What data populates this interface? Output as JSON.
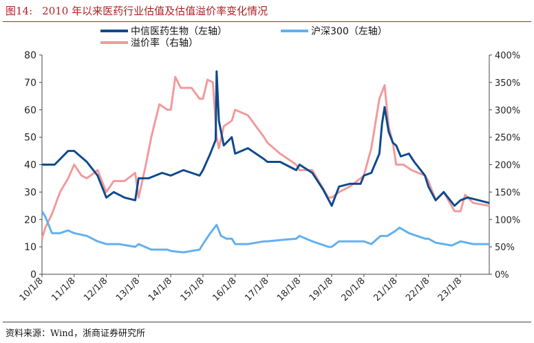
{
  "figure": {
    "label": "图14:",
    "title": "2010 年以来医药行业估值及估值溢价率变化情况",
    "source": "资料来源：Wind，浙商证券研究所"
  },
  "colors": {
    "pharma": "#0d4a8c",
    "hs300": "#62b0f0",
    "premium": "#f29a9c",
    "title": "#b11f24"
  },
  "chart_data": {
    "type": "line",
    "legend_position": "top",
    "grid": false,
    "x_ticks": [
      "10/1/8",
      "11/1/8",
      "12/1/8",
      "13/1/8",
      "14/1/8",
      "15/1/8",
      "16/1/8",
      "17/1/8",
      "18/1/8",
      "19/1/8",
      "20/1/8",
      "21/1/8",
      "22/1/8",
      "23/1/8"
    ],
    "xlim": [
      "2010-01-08",
      "2023-11-30"
    ],
    "y_left": {
      "ylim": [
        0,
        80
      ],
      "ticks": [
        "0",
        "10",
        "20",
        "30",
        "40",
        "50",
        "60",
        "70",
        "80"
      ]
    },
    "y_right": {
      "ylim": [
        0,
        4
      ],
      "ticks": [
        "0%",
        "50%",
        "100%",
        "150%",
        "200%",
        "250%",
        "300%",
        "350%",
        "400%"
      ]
    },
    "series": [
      {
        "name": "中信医药生物（左轴）",
        "axis": "left",
        "key": "pharma",
        "points": [
          [
            "2010-01-08",
            40
          ],
          [
            "2010-06-01",
            40
          ],
          [
            "2010-11-01",
            45
          ],
          [
            "2011-01-08",
            45
          ],
          [
            "2011-06-01",
            41
          ],
          [
            "2011-10-01",
            36
          ],
          [
            "2012-01-08",
            28
          ],
          [
            "2012-04-01",
            30
          ],
          [
            "2012-08-01",
            28
          ],
          [
            "2012-12-01",
            27
          ],
          [
            "2013-01-08",
            35
          ],
          [
            "2013-05-01",
            35
          ],
          [
            "2013-10-01",
            37
          ],
          [
            "2014-01-08",
            36
          ],
          [
            "2014-06-01",
            38
          ],
          [
            "2014-12-01",
            36
          ],
          [
            "2015-01-08",
            38
          ],
          [
            "2015-04-01",
            44
          ],
          [
            "2015-06-01",
            49
          ],
          [
            "2015-06-12",
            74
          ],
          [
            "2015-07-08",
            56
          ],
          [
            "2015-09-01",
            47
          ],
          [
            "2015-12-01",
            50
          ],
          [
            "2016-01-08",
            44
          ],
          [
            "2016-06-01",
            46
          ],
          [
            "2016-12-01",
            42
          ],
          [
            "2017-01-08",
            41
          ],
          [
            "2017-06-01",
            41
          ],
          [
            "2017-12-01",
            38
          ],
          [
            "2018-01-08",
            40
          ],
          [
            "2018-06-01",
            37
          ],
          [
            "2018-10-01",
            31
          ],
          [
            "2019-01-08",
            25
          ],
          [
            "2019-04-01",
            32
          ],
          [
            "2019-08-01",
            33
          ],
          [
            "2019-12-01",
            33
          ],
          [
            "2020-01-08",
            36
          ],
          [
            "2020-04-01",
            37
          ],
          [
            "2020-07-01",
            44
          ],
          [
            "2020-08-01",
            55
          ],
          [
            "2020-08-30",
            61
          ],
          [
            "2020-10-15",
            52
          ],
          [
            "2020-12-01",
            48
          ],
          [
            "2021-01-08",
            47
          ],
          [
            "2021-03-01",
            43
          ],
          [
            "2021-06-01",
            44
          ],
          [
            "2021-08-01",
            41
          ],
          [
            "2021-12-01",
            36
          ],
          [
            "2022-01-08",
            32
          ],
          [
            "2022-04-01",
            27
          ],
          [
            "2022-07-01",
            30
          ],
          [
            "2022-11-01",
            25
          ],
          [
            "2023-01-08",
            27
          ],
          [
            "2023-04-01",
            28
          ],
          [
            "2023-08-01",
            27
          ],
          [
            "2023-11-30",
            26
          ]
        ]
      },
      {
        "name": "沪深300（左轴）",
        "axis": "left",
        "key": "hs300",
        "points": [
          [
            "2010-01-08",
            23
          ],
          [
            "2010-02-15",
            21
          ],
          [
            "2010-05-01",
            15
          ],
          [
            "2010-08-01",
            15
          ],
          [
            "2010-11-01",
            16
          ],
          [
            "2011-01-08",
            15
          ],
          [
            "2011-06-01",
            14
          ],
          [
            "2011-10-01",
            12
          ],
          [
            "2012-01-08",
            11
          ],
          [
            "2012-06-01",
            11
          ],
          [
            "2012-12-01",
            10
          ],
          [
            "2013-01-08",
            11
          ],
          [
            "2013-06-01",
            9
          ],
          [
            "2013-12-01",
            9
          ],
          [
            "2014-01-08",
            8.5
          ],
          [
            "2014-06-01",
            8
          ],
          [
            "2014-12-01",
            9
          ],
          [
            "2015-01-08",
            11
          ],
          [
            "2015-04-01",
            15
          ],
          [
            "2015-06-12",
            18
          ],
          [
            "2015-08-01",
            14
          ],
          [
            "2015-10-01",
            13
          ],
          [
            "2015-12-01",
            13
          ],
          [
            "2016-01-08",
            11
          ],
          [
            "2016-06-01",
            11
          ],
          [
            "2016-12-01",
            12
          ],
          [
            "2017-01-08",
            12
          ],
          [
            "2017-06-01",
            12.5
          ],
          [
            "2017-12-01",
            13
          ],
          [
            "2018-01-08",
            14
          ],
          [
            "2018-06-01",
            12
          ],
          [
            "2018-12-01",
            10
          ],
          [
            "2019-01-08",
            10
          ],
          [
            "2019-04-01",
            12
          ],
          [
            "2019-12-01",
            12
          ],
          [
            "2020-01-08",
            12
          ],
          [
            "2020-04-01",
            11
          ],
          [
            "2020-07-15",
            14
          ],
          [
            "2020-10-01",
            14
          ],
          [
            "2021-01-08",
            16
          ],
          [
            "2021-02-15",
            17
          ],
          [
            "2021-06-01",
            15
          ],
          [
            "2021-12-01",
            13
          ],
          [
            "2022-01-08",
            13
          ],
          [
            "2022-04-01",
            11.5
          ],
          [
            "2022-10-01",
            10.5
          ],
          [
            "2023-01-08",
            12
          ],
          [
            "2023-06-01",
            11
          ],
          [
            "2023-11-30",
            11
          ]
        ]
      },
      {
        "name": "溢价率（右轴）",
        "axis": "right",
        "key": "premium",
        "points": [
          [
            "2010-01-08",
            0.65
          ],
          [
            "2010-02-15",
            0.85
          ],
          [
            "2010-05-01",
            1.1
          ],
          [
            "2010-08-01",
            1.5
          ],
          [
            "2010-11-01",
            1.75
          ],
          [
            "2011-01-08",
            2.0
          ],
          [
            "2011-04-01",
            1.8
          ],
          [
            "2011-06-01",
            1.75
          ],
          [
            "2011-10-01",
            1.9
          ],
          [
            "2012-01-08",
            1.5
          ],
          [
            "2012-04-01",
            1.7
          ],
          [
            "2012-08-01",
            1.7
          ],
          [
            "2012-12-01",
            1.85
          ],
          [
            "2013-01-08",
            1.4
          ],
          [
            "2013-04-01",
            2.0
          ],
          [
            "2013-06-01",
            2.5
          ],
          [
            "2013-09-01",
            3.1
          ],
          [
            "2013-12-01",
            3.0
          ],
          [
            "2014-01-08",
            3.0
          ],
          [
            "2014-03-01",
            3.6
          ],
          [
            "2014-05-01",
            3.4
          ],
          [
            "2014-09-01",
            3.4
          ],
          [
            "2014-12-01",
            3.2
          ],
          [
            "2015-01-08",
            3.2
          ],
          [
            "2015-03-01",
            3.55
          ],
          [
            "2015-05-01",
            3.5
          ],
          [
            "2015-06-12",
            2.5
          ],
          [
            "2015-07-08",
            2.3
          ],
          [
            "2015-09-01",
            2.7
          ],
          [
            "2015-12-01",
            2.8
          ],
          [
            "2016-01-08",
            3.0
          ],
          [
            "2016-06-01",
            2.9
          ],
          [
            "2016-12-01",
            2.5
          ],
          [
            "2017-01-08",
            2.4
          ],
          [
            "2017-06-01",
            2.2
          ],
          [
            "2017-12-01",
            2.0
          ],
          [
            "2018-01-08",
            1.9
          ],
          [
            "2018-06-01",
            1.9
          ],
          [
            "2018-12-01",
            1.4
          ],
          [
            "2019-01-08",
            1.4
          ],
          [
            "2019-04-01",
            1.5
          ],
          [
            "2019-08-01",
            1.6
          ],
          [
            "2019-12-01",
            1.75
          ],
          [
            "2020-01-08",
            1.8
          ],
          [
            "2020-04-01",
            2.3
          ],
          [
            "2020-07-01",
            3.2
          ],
          [
            "2020-08-30",
            3.45
          ],
          [
            "2020-10-15",
            2.7
          ],
          [
            "2020-12-01",
            2.4
          ],
          [
            "2021-01-08",
            2.0
          ],
          [
            "2021-04-01",
            2.0
          ],
          [
            "2021-07-01",
            1.9
          ],
          [
            "2021-12-01",
            1.8
          ],
          [
            "2022-01-08",
            1.7
          ],
          [
            "2022-04-01",
            1.35
          ],
          [
            "2022-07-01",
            1.5
          ],
          [
            "2022-11-01",
            1.15
          ],
          [
            "2023-01-08",
            1.15
          ],
          [
            "2023-03-01",
            1.45
          ],
          [
            "2023-06-01",
            1.3
          ],
          [
            "2023-11-30",
            1.25
          ]
        ]
      }
    ]
  }
}
